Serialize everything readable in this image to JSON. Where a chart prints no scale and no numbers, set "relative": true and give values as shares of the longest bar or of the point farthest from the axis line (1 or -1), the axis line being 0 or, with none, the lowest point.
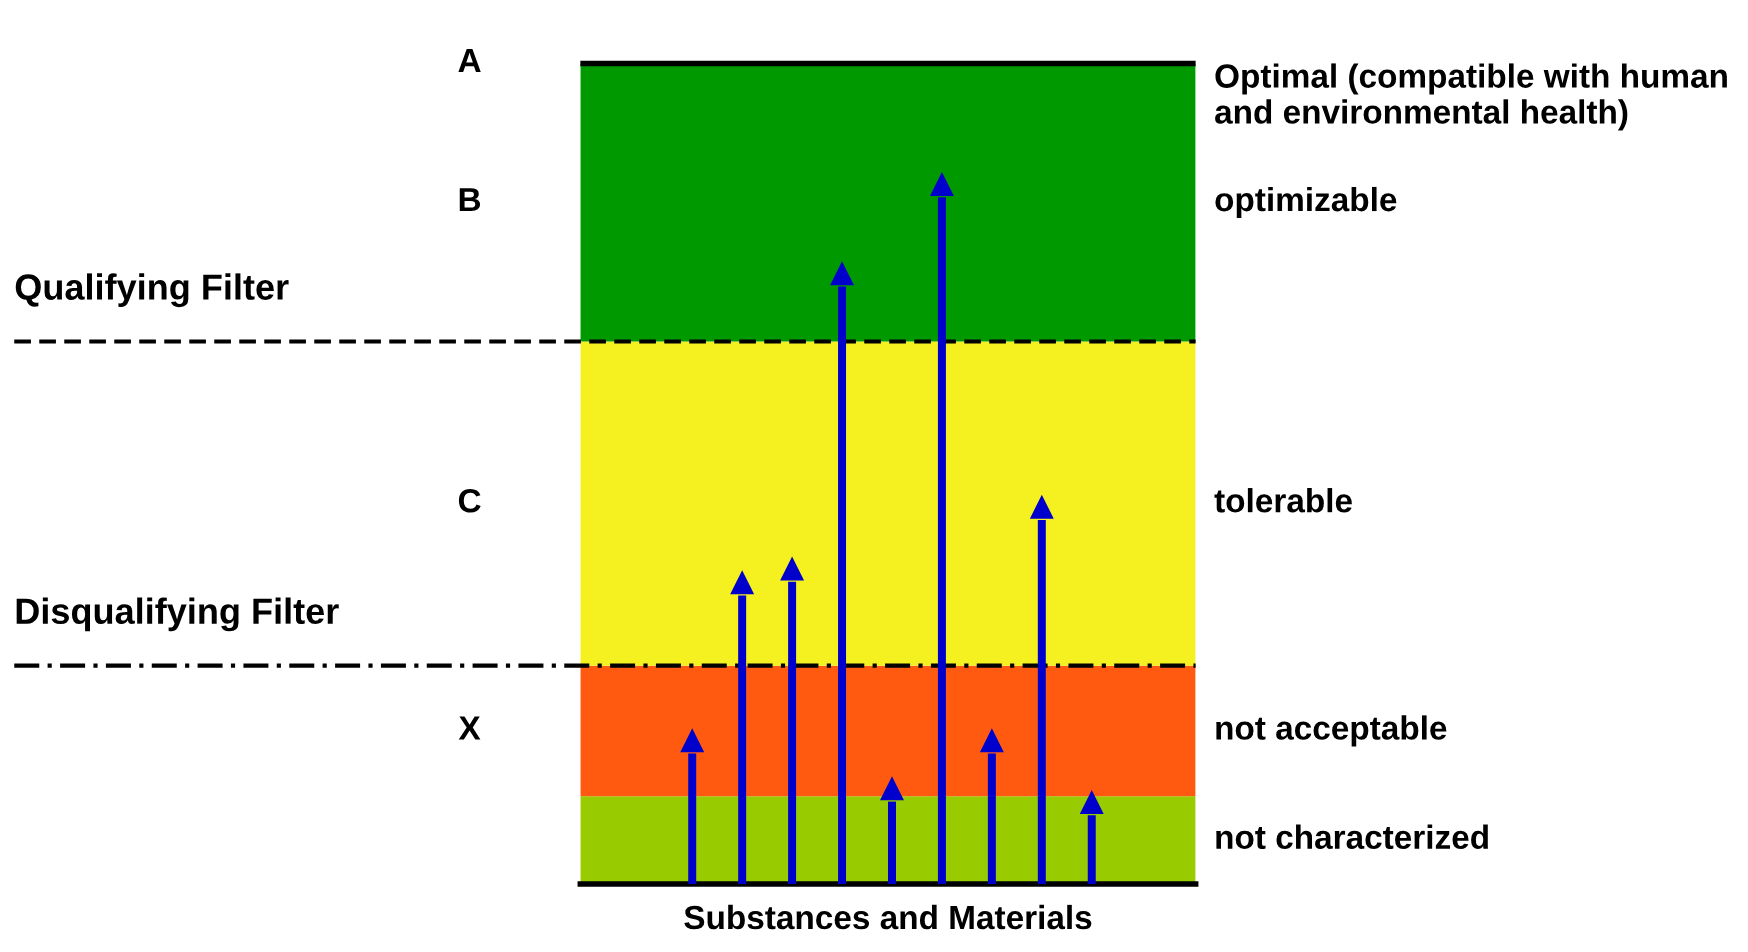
{
  "chart_data": {
    "type": "bar",
    "relative": true,
    "xlabel": "Substances and Materials",
    "categories": [
      null,
      null,
      null,
      null,
      null,
      null,
      null,
      null,
      null
    ],
    "series": [
      {
        "color": "#0000cc",
        "values": [
          0.19,
          0.42,
          0.44,
          0.87,
          0.12,
          1.0,
          0.19,
          0.53,
          0.1
        ]
      }
    ],
    "marker": "triangle",
    "grid": false,
    "legend": false,
    "bands": [
      {
        "axis": "y",
        "from": 0,
        "to": 0.128,
        "label": "not characterized",
        "color": "#99cc00"
      },
      {
        "axis": "y",
        "from": 0.128,
        "to": 0.318,
        "label": "not acceptable",
        "color": "#ff5a10"
      },
      {
        "axis": "y",
        "from": 0.318,
        "to": 0.79,
        "label": "tolerable",
        "color": "#f5f020"
      },
      {
        "axis": "y",
        "from": 0.79,
        "to": 1.195,
        "label": "optimizable",
        "color": "#009900"
      }
    ],
    "ref_lines": [
      {
        "axis": "y",
        "value": 1.195,
        "label": "Optimal (compatible with human and environmental health)",
        "line_style": "solid"
      },
      {
        "axis": "y",
        "value": 0.79,
        "label": "Qualifying Filter",
        "line_style": "dashed"
      },
      {
        "axis": "y",
        "value": 0.318,
        "label": "Disqualifying Filter",
        "line_style": "dashdot"
      }
    ],
    "annotations": [
      "A",
      "B",
      "C",
      "X"
    ]
  }
}
